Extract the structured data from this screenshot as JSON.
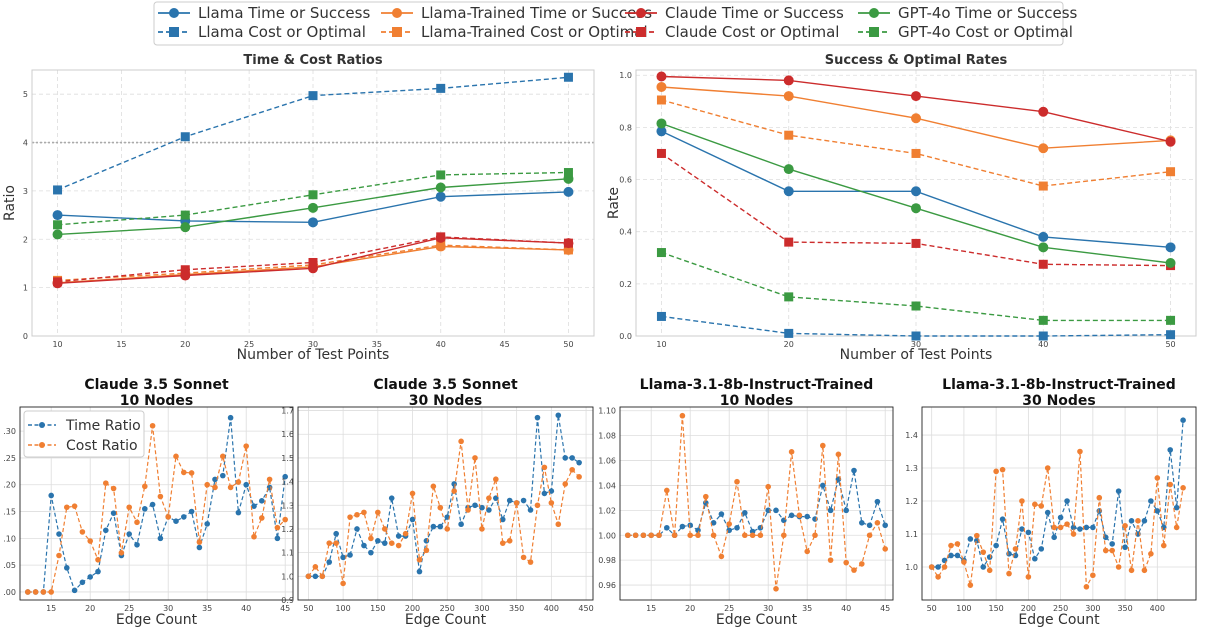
{
  "legend": {
    "entries": [
      {
        "label": "Llama Time or Success",
        "color": "#2a74ad",
        "dash": false,
        "marker": "circle"
      },
      {
        "label": "Llama Cost or Optimal",
        "color": "#2a74ad",
        "dash": true,
        "marker": "square"
      },
      {
        "label": "Llama-Trained Time or Success",
        "color": "#f07f32",
        "dash": false,
        "marker": "circle"
      },
      {
        "label": "Llama-Trained Cost or Optimal",
        "color": "#f07f32",
        "dash": true,
        "marker": "square"
      },
      {
        "label": "Claude Time or Success",
        "color": "#cc2c2c",
        "dash": false,
        "marker": "circle"
      },
      {
        "label": "Claude Cost or Optimal",
        "color": "#cc2c2c",
        "dash": true,
        "marker": "square"
      },
      {
        "label": "GPT-4o Time or Success",
        "color": "#3b9a42",
        "dash": false,
        "marker": "circle"
      },
      {
        "label": "GPT-4o Cost or Optimal",
        "color": "#3b9a42",
        "dash": true,
        "marker": "square"
      }
    ]
  },
  "chart_data": [
    {
      "type": "line",
      "title": "Time & Cost Ratios",
      "xlabel": "Number of Test Points",
      "ylabel": "Ratio",
      "xlim": [
        8,
        52
      ],
      "ylim": [
        0,
        5.5
      ],
      "xticks": [
        "10",
        "15",
        "20",
        "25",
        "30",
        "35",
        "40",
        "45",
        "50"
      ],
      "yticks": [
        "0",
        "1",
        "2",
        "3",
        "4",
        "5"
      ],
      "hline": 4,
      "x": [
        10,
        20,
        30,
        40,
        50
      ],
      "series": [
        {
          "name": "Llama Time or Success",
          "values": [
            2.5,
            2.38,
            2.35,
            2.88,
            2.98
          ]
        },
        {
          "name": "Llama Cost or Optimal",
          "values": [
            3.02,
            4.12,
            4.97,
            5.12,
            5.35
          ]
        },
        {
          "name": "Llama-Trained Time or Success",
          "values": [
            1.1,
            1.27,
            1.43,
            1.85,
            1.78
          ]
        },
        {
          "name": "Llama-Trained Cost or Optimal",
          "values": [
            1.15,
            1.3,
            1.47,
            1.88,
            1.78
          ]
        },
        {
          "name": "Claude Time or Success",
          "values": [
            1.09,
            1.25,
            1.4,
            2.03,
            1.92
          ]
        },
        {
          "name": "Claude Cost or Optimal",
          "values": [
            1.12,
            1.37,
            1.52,
            2.05,
            1.92
          ]
        },
        {
          "name": "GPT-4o Time or Success",
          "values": [
            2.1,
            2.25,
            2.65,
            3.07,
            3.25
          ]
        },
        {
          "name": "GPT-4o Cost or Optimal",
          "values": [
            2.3,
            2.5,
            2.92,
            3.33,
            3.38
          ]
        }
      ]
    },
    {
      "type": "line",
      "title": "Success & Optimal Rates",
      "xlabel": "Number of Test Points",
      "ylabel": "Rate",
      "xlim": [
        8,
        52
      ],
      "ylim": [
        0,
        1.02
      ],
      "xticks": [
        "10",
        "20",
        "30",
        "40",
        "50"
      ],
      "yticks": [
        "0.0",
        "0.2",
        "0.4",
        "0.6",
        "0.8",
        "1.0"
      ],
      "x": [
        10,
        20,
        30,
        40,
        50
      ],
      "series": [
        {
          "name": "Llama Time or Success",
          "values": [
            0.785,
            0.555,
            0.555,
            0.38,
            0.34
          ]
        },
        {
          "name": "Llama Cost or Optimal",
          "values": [
            0.075,
            0.01,
            0.0,
            0.0,
            0.005
          ]
        },
        {
          "name": "Llama-Trained Time or Success",
          "values": [
            0.955,
            0.92,
            0.835,
            0.72,
            0.75
          ]
        },
        {
          "name": "Llama-Trained Cost or Optimal",
          "values": [
            0.905,
            0.77,
            0.7,
            0.575,
            0.63
          ]
        },
        {
          "name": "Claude Time or Success",
          "values": [
            0.995,
            0.98,
            0.92,
            0.86,
            0.745
          ]
        },
        {
          "name": "Claude Cost or Optimal",
          "values": [
            0.7,
            0.36,
            0.355,
            0.275,
            0.27
          ]
        },
        {
          "name": "GPT-4o Time or Success",
          "values": [
            0.815,
            0.64,
            0.49,
            0.34,
            0.28
          ]
        },
        {
          "name": "GPT-4o Cost or Optimal",
          "values": [
            0.32,
            0.15,
            0.115,
            0.06,
            0.06
          ]
        }
      ]
    },
    {
      "type": "line",
      "title": "Claude 3.5 Sonnet",
      "subtitle": "10 Nodes",
      "xlabel": "Edge Count",
      "xlim": [
        11,
        46
      ],
      "ylim": [
        0.985,
        1.345
      ],
      "xticks": [
        "15",
        "20",
        "25",
        "30",
        "35",
        "40",
        "45"
      ],
      "yticks": [
        ".00",
        ".05",
        ".10",
        ".15",
        ".20",
        ".25",
        ".30"
      ],
      "ytickvals": [
        1.0,
        1.05,
        1.1,
        1.15,
        1.2,
        1.25,
        1.3
      ],
      "legend": [
        "Time Ratio",
        "Cost Ratio"
      ],
      "x": [
        12,
        13,
        14,
        15,
        16,
        17,
        18,
        19,
        20,
        21,
        22,
        23,
        24,
        25,
        26,
        27,
        28,
        29,
        30,
        31,
        32,
        33,
        34,
        35,
        36,
        37,
        38,
        39,
        40,
        41,
        42,
        43,
        44,
        45
      ],
      "series": [
        {
          "name": "Time Ratio",
          "values": [
            1.0,
            1.0,
            1.0,
            1.18,
            1.108,
            1.045,
            1.003,
            1.018,
            1.028,
            1.038,
            1.115,
            1.147,
            1.068,
            1.108,
            1.088,
            1.155,
            1.163,
            1.1,
            1.14,
            1.132,
            1.14,
            1.15,
            1.083,
            1.127,
            1.21,
            1.217,
            1.325,
            1.148,
            1.2,
            1.16,
            1.17,
            1.195,
            1.1,
            1.215
          ]
        },
        {
          "name": "Cost Ratio",
          "values": [
            1.0,
            1.0,
            1.0,
            1.0,
            1.068,
            1.158,
            1.16,
            1.112,
            1.095,
            1.06,
            1.203,
            1.193,
            1.073,
            1.158,
            1.13,
            1.197,
            1.31,
            1.178,
            1.14,
            1.253,
            1.223,
            1.222,
            1.093,
            1.2,
            1.195,
            1.253,
            1.195,
            1.205,
            1.272,
            1.103,
            1.138,
            1.21,
            1.12,
            1.135
          ]
        }
      ]
    },
    {
      "type": "line",
      "title": "Claude 3.5 Sonnet",
      "subtitle": "30 Nodes",
      "xlabel": "Edge Count",
      "xlim": [
        35,
        460
      ],
      "ylim": [
        0.9,
        1.715
      ],
      "xticks": [
        "50",
        "100",
        "150",
        "200",
        "250",
        "300",
        "350",
        "400",
        "450"
      ],
      "yticks": [
        "0.9",
        "1.0",
        "1.1",
        "1.2",
        "1.3",
        "1.4",
        "1.5",
        "1.6",
        "1.7"
      ],
      "x": [
        50,
        60,
        70,
        80,
        90,
        100,
        110,
        120,
        130,
        140,
        150,
        160,
        170,
        180,
        190,
        200,
        210,
        220,
        230,
        240,
        250,
        260,
        270,
        280,
        290,
        300,
        310,
        320,
        330,
        340,
        350,
        360,
        370,
        380,
        390,
        400,
        410,
        420,
        430,
        440
      ],
      "series": [
        {
          "name": "Time Ratio",
          "values": [
            1.0,
            1.0,
            1.0,
            1.06,
            1.18,
            1.08,
            1.09,
            1.2,
            1.13,
            1.1,
            1.15,
            1.14,
            1.33,
            1.17,
            1.17,
            1.24,
            1.02,
            1.15,
            1.21,
            1.21,
            1.25,
            1.39,
            1.22,
            1.29,
            1.3,
            1.29,
            1.28,
            1.33,
            1.24,
            1.32,
            1.31,
            1.32,
            1.28,
            1.67,
            1.35,
            1.36,
            1.68,
            1.5,
            1.5,
            1.48
          ]
        },
        {
          "name": "Cost Ratio",
          "values": [
            1.0,
            1.04,
            1.0,
            1.14,
            1.14,
            0.97,
            1.25,
            1.26,
            1.27,
            1.16,
            1.27,
            1.2,
            1.14,
            1.13,
            1.18,
            1.35,
            1.07,
            1.11,
            1.38,
            1.29,
            1.2,
            1.36,
            1.57,
            1.28,
            1.5,
            1.2,
            1.33,
            1.41,
            1.14,
            1.15,
            1.31,
            1.08,
            1.06,
            1.3,
            1.46,
            1.31,
            1.22,
            1.39,
            1.45,
            1.42
          ]
        }
      ]
    },
    {
      "type": "line",
      "title": "Llama-3.1-8b-Instruct-Trained",
      "subtitle": "10 Nodes",
      "xlabel": "Edge Count",
      "xlim": [
        11,
        46
      ],
      "ylim": [
        0.948,
        1.103
      ],
      "xticks": [
        "15",
        "20",
        "25",
        "30",
        "35",
        "40",
        "45"
      ],
      "yticks": [
        "0.96",
        "0.98",
        "1.00",
        "1.02",
        "1.04",
        "1.06",
        "1.08",
        "1.10"
      ],
      "x": [
        12,
        13,
        14,
        15,
        16,
        17,
        18,
        19,
        20,
        21,
        22,
        23,
        24,
        25,
        26,
        27,
        28,
        29,
        30,
        31,
        32,
        33,
        34,
        35,
        36,
        37,
        38,
        39,
        40,
        41,
        42,
        43,
        44,
        45
      ],
      "series": [
        {
          "name": "Time Ratio",
          "values": [
            1.0,
            1.0,
            1.0,
            1.0,
            1.0,
            1.006,
            1.0,
            1.007,
            1.008,
            1.004,
            1.026,
            1.01,
            1.017,
            1.004,
            1.006,
            1.018,
            1.003,
            1.006,
            1.02,
            1.02,
            1.012,
            1.016,
            1.015,
            1.015,
            1.013,
            1.04,
            1.02,
            1.045,
            1.02,
            1.052,
            1.01,
            1.008,
            1.027,
            1.008
          ]
        },
        {
          "name": "Cost Ratio",
          "values": [
            1.0,
            1.0,
            1.0,
            1.0,
            1.0,
            1.036,
            1.0,
            1.096,
            1.0,
            1.0,
            1.031,
            1.0,
            0.983,
            1.009,
            1.043,
            1.0,
            1.0,
            1.0,
            1.039,
            0.957,
            1.0,
            1.067,
            1.016,
            0.987,
            1.0,
            1.072,
            0.98,
            1.065,
            0.978,
            0.972,
            0.977,
            1.0,
            1.01,
            0.989
          ]
        }
      ]
    },
    {
      "type": "line",
      "title": "Llama-3.1-8b-Instruct-Trained",
      "subtitle": "30 Nodes",
      "xlabel": "Edge Count",
      "xlim": [
        35,
        460
      ],
      "ylim": [
        0.9,
        1.485
      ],
      "xticks": [
        "50",
        "100",
        "150",
        "200",
        "250",
        "300",
        "350",
        "400"
      ],
      "yticks": [
        "1.0",
        "1.1",
        "1.2",
        "1.3",
        "1.4"
      ],
      "x": [
        50,
        60,
        70,
        80,
        90,
        100,
        110,
        120,
        130,
        140,
        150,
        160,
        170,
        180,
        190,
        200,
        210,
        220,
        230,
        240,
        250,
        260,
        270,
        280,
        290,
        300,
        310,
        320,
        330,
        340,
        350,
        360,
        370,
        380,
        390,
        400,
        410,
        420,
        430,
        440
      ],
      "series": [
        {
          "name": "Time Ratio",
          "values": [
            1.0,
            1.0,
            1.02,
            1.035,
            1.035,
            1.02,
            1.085,
            1.08,
            1.0,
            1.03,
            1.065,
            1.145,
            1.04,
            1.035,
            1.115,
            1.105,
            1.025,
            1.055,
            1.165,
            1.09,
            1.15,
            1.2,
            1.12,
            1.115,
            1.12,
            1.12,
            1.17,
            1.09,
            1.07,
            1.23,
            1.06,
            1.14,
            1.1,
            1.14,
            1.2,
            1.17,
            1.12,
            1.355,
            1.18,
            1.445
          ]
        },
        {
          "name": "Cost Ratio",
          "values": [
            1.0,
            0.97,
            1.0,
            1.065,
            1.07,
            1.015,
            0.945,
            1.095,
            1.045,
            0.99,
            1.29,
            1.295,
            0.98,
            1.055,
            1.2,
            0.97,
            1.19,
            1.185,
            1.3,
            1.12,
            1.12,
            1.13,
            1.1,
            1.35,
            0.94,
            0.975,
            1.21,
            1.05,
            1.05,
            1.0,
            1.125,
            0.99,
            1.14,
            0.99,
            1.04,
            1.27,
            1.065,
            1.25,
            1.12,
            1.24
          ]
        }
      ]
    }
  ]
}
